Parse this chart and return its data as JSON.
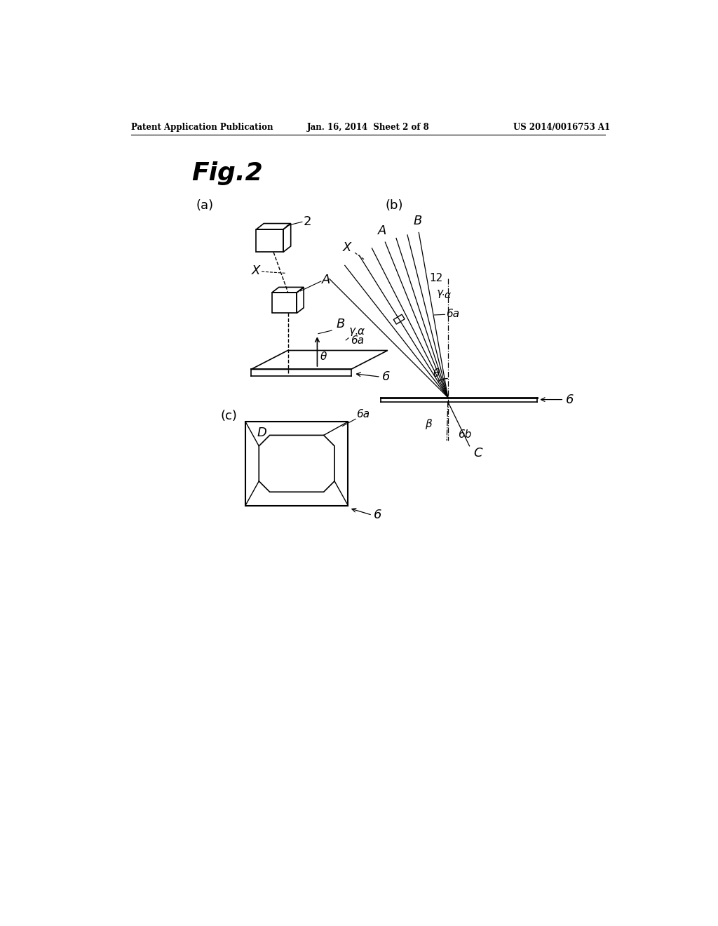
{
  "title": "Fig.2",
  "header_left": "Patent Application Publication",
  "header_center": "Jan. 16, 2014  Sheet 2 of 8",
  "header_right": "US 2014/0016753 A1",
  "bg_color": "#ffffff",
  "line_color": "#000000",
  "fig_label_a": "(a)",
  "fig_label_b": "(b)",
  "fig_label_c": "(c)"
}
